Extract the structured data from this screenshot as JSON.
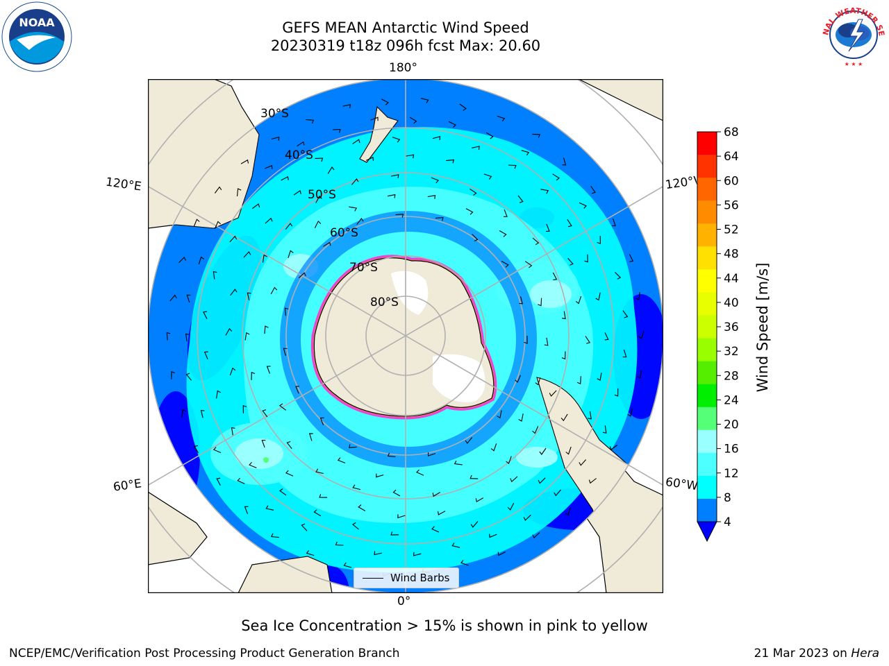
{
  "header": {
    "title_line1": "GEFS MEAN Antarctic Wind Speed",
    "title_line2": "20230319 t18z 096h fcst   Max: 20.60"
  },
  "logos": {
    "noaa_text": "NOAA",
    "nws_text": "NATIONAL WEATHER SERVICE"
  },
  "map": {
    "projection": "south-polar-stereographic",
    "longitude_labels": {
      "top": "180°",
      "bottom": "0°",
      "upper_left": "120°E",
      "upper_right": "120°W",
      "lower_left": "60°E",
      "lower_right": "60°W"
    },
    "latitude_labels": [
      "30°S",
      "40°S",
      "50°S",
      "60°S",
      "70°S",
      "80°S"
    ],
    "legend_label": "Wind Barbs",
    "colors": {
      "ocean_lightest": "#99ffff",
      "ocean_light": "#4dffff",
      "ocean_cyan": "#00ffff",
      "ocean_mid": "#0080ff",
      "ocean_deep": "#0000ff",
      "land": "#efebd8",
      "ice_edge": "#ff33cc",
      "grid": "#b0b0b0"
    }
  },
  "colorbar": {
    "label": "Wind Speed [m/s]",
    "ticks": [
      "68",
      "64",
      "60",
      "56",
      "52",
      "48",
      "44",
      "40",
      "36",
      "32",
      "28",
      "24",
      "20",
      "16",
      "12",
      "8",
      "4"
    ],
    "colors_top_to_bottom": [
      "#ff0000",
      "#ff3300",
      "#ff6600",
      "#ff8c00",
      "#ffb300",
      "#ffe000",
      "#ffff00",
      "#e8ff00",
      "#ccff00",
      "#99ff00",
      "#55ee00",
      "#00ee00",
      "#55ff77",
      "#99ffff",
      "#4dffff",
      "#00ffff",
      "#0080ff"
    ],
    "extend_color": "#0000ff"
  },
  "note": "Sea Ice Concentration > 15% is shown in pink to yellow",
  "footer": {
    "left": "NCEP/EMC/Verification Post Processing Product Generation Branch",
    "right_prefix": "21 Mar 2023 on ",
    "right_host": "Hera"
  }
}
